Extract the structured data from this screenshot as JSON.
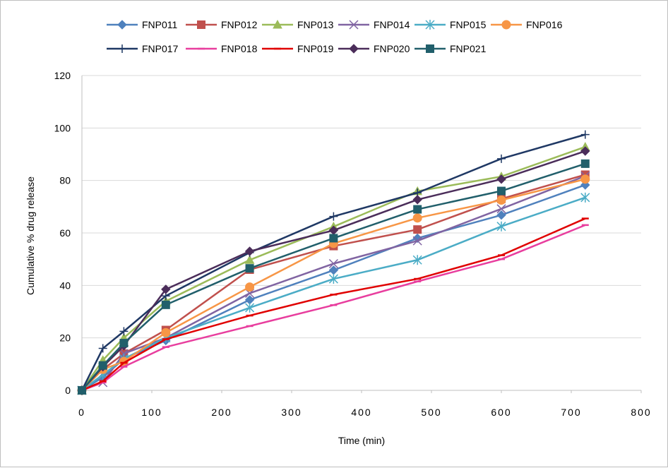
{
  "chart_data": {
    "type": "line",
    "xlabel": "Time (min)",
    "ylabel": "Cumulative % drug release",
    "xlim": [
      0,
      800
    ],
    "ylim": [
      0,
      120
    ],
    "xticks": [
      0,
      100,
      200,
      300,
      400,
      500,
      600,
      700,
      800
    ],
    "yticks": [
      0,
      20,
      40,
      60,
      80,
      100,
      120
    ],
    "grid": "horizontal-major",
    "legend": "top",
    "x": [
      0,
      30,
      60,
      120,
      240,
      360,
      480,
      600,
      720
    ],
    "series": [
      {
        "name": "FNP011",
        "color": "#4F81BD",
        "marker": "diamond",
        "values": [
          0,
          5,
          12,
          19,
          34.5,
          45.8,
          58,
          66.8,
          78.3
        ]
      },
      {
        "name": "FNP012",
        "color": "#C0504D",
        "marker": "square",
        "values": [
          0,
          8,
          14,
          23,
          46,
          55,
          61.3,
          73,
          82.2
        ]
      },
      {
        "name": "FNP013",
        "color": "#9BBB59",
        "marker": "triangle",
        "values": [
          0,
          11.5,
          20,
          34,
          49.7,
          62.4,
          75.9,
          81.5,
          92.8
        ]
      },
      {
        "name": "FNP014",
        "color": "#8064A2",
        "marker": "x",
        "values": [
          0,
          3,
          14,
          20,
          37,
          48.3,
          57,
          69.2,
          81.7
        ]
      },
      {
        "name": "FNP015",
        "color": "#4BACC6",
        "marker": "star",
        "values": [
          0,
          6,
          12,
          20,
          31.5,
          42.5,
          49.7,
          62.5,
          73.5
        ]
      },
      {
        "name": "FNP016",
        "color": "#F79646",
        "marker": "circle",
        "values": [
          0,
          8,
          11,
          22,
          39.4,
          56,
          65.7,
          72.5,
          80.5
        ]
      },
      {
        "name": "FNP017",
        "color": "#1F3864",
        "marker": "plus",
        "values": [
          0,
          16,
          22.5,
          36,
          52.5,
          66.3,
          75.3,
          88.3,
          97.5
        ]
      },
      {
        "name": "FNP018",
        "color": "#E83E9E",
        "marker": "dash",
        "values": [
          0,
          3,
          9,
          16.5,
          24.5,
          32.5,
          41.5,
          50,
          63
        ]
      },
      {
        "name": "FNP019",
        "color": "#E00000",
        "marker": "dash",
        "values": [
          0,
          3.5,
          10.5,
          19.5,
          28.5,
          36.5,
          42.5,
          51.5,
          65.5
        ]
      },
      {
        "name": "FNP020",
        "color": "#4B2D5A",
        "marker": "diamond",
        "values": [
          0,
          9,
          17,
          38.5,
          53,
          61,
          72.7,
          80.5,
          91.2
        ]
      },
      {
        "name": "FNP021",
        "color": "#215F6B",
        "marker": "square",
        "values": [
          0,
          9.5,
          18,
          32.6,
          46.5,
          58,
          69,
          76,
          86.4
        ]
      }
    ]
  }
}
